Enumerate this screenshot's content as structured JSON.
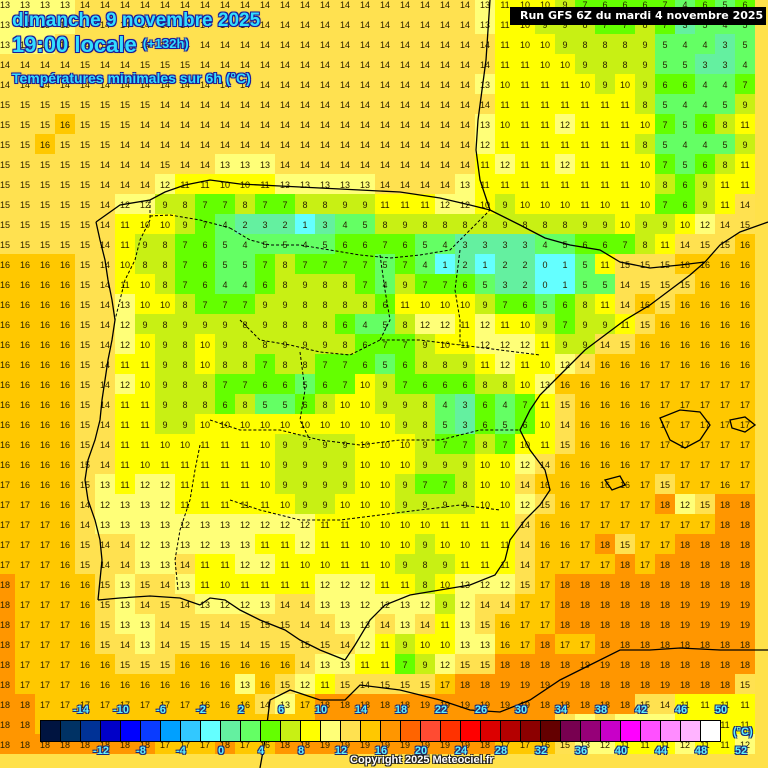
{
  "header": {
    "date": "dimanche 9 novembre 2025",
    "time": "19:00 locale",
    "offset": "(+132h)",
    "parameter": "Températures minimales sur 6h (°C)",
    "run": "Run GFS 6Z du mardi 4 novembre 2025"
  },
  "footer": {
    "copyright": "Copyright 2025 Meteociel.fr",
    "unit": "(°C)"
  },
  "legend": {
    "top_labels": [
      "-14",
      "-10",
      "-6",
      "-2",
      "2",
      "6",
      "10",
      "14",
      "18",
      "22",
      "26",
      "30",
      "34",
      "38",
      "42",
      "46",
      "50"
    ],
    "bottom_labels": [
      "-12",
      "-8",
      "-4",
      "0",
      "4",
      "8",
      "12",
      "16",
      "20",
      "24",
      "28",
      "32",
      "36",
      "40",
      "44",
      "48",
      "52"
    ],
    "colors": [
      "#001440",
      "#003264",
      "#003296",
      "#0000c8",
      "#0000ff",
      "#0a3cff",
      "#00a0ff",
      "#32c8ff",
      "#64ffff",
      "#64f0a0",
      "#64ff64",
      "#64ff00",
      "#c8f014",
      "#ffff00",
      "#ffff78",
      "#ffe150",
      "#ffc800",
      "#ff9600",
      "#ff6400",
      "#ff4b32",
      "#ff3200",
      "#ff0000",
      "#dc0000",
      "#b40000",
      "#8c0000",
      "#640000",
      "#780050",
      "#960078",
      "#c800c8",
      "#ff00ff",
      "#ff50ff",
      "#ff8cff",
      "#ffb4ff",
      "#ffffff"
    ]
  },
  "chart_data": {
    "type": "heatmap",
    "title": "Températures minimales sur 6h (°C)",
    "subtitle": "dimanche 9 novembre 2025 19:00 locale (+132h) — Run GFS 6Z du mardi 4 novembre 2025",
    "region": "Iberian Peninsula",
    "unit": "°C",
    "grid_spacing_px": 20,
    "rows": [
      "13 13 13 13 14 14 14 14 14 14 14 14 14 14 14 14 14 14 14 14 14 14 14 14 13 11 10 10 9 7 6 6 6 7 4 6 5 6",
      "13 13 13 13 14 14 14 14 14 14 14 14 14 14 14 14 14 14 14 14 14 14 14 14 13 11 10 9 9 8 7 7 8 7 3 5 4 5",
      "13 13 13 14 14 14 14 14 14 14 14 14 14 14 14 14 14 14 14 14 14 14 14 14 14 11 10 10 9 8 8 8 9 5 4 4 3 5",
      "14 14 14 14 15 14 14 15 15 15 14 14 14 14 14 14 14 14 14 14 14 14 14 14 14 11 11 10 10 9 8 8 9 5 5 3 3 4",
      "14 14 14 14 14 14 14 14 14 14 14 14 14 14 14 14 14 14 14 14 14 14 14 14 13 10 11 11 11 10 9 10 9 6 6 4 4 7",
      "15 15 15 15 15 15 15 15 14 14 14 14 14 14 14 14 14 14 14 14 14 14 14 14 14 11 11 11 11 11 11 11 8 5 4 4 5 9",
      "15 15 15 16 15 15 15 14 14 14 14 14 14 14 14 14 14 14 14 14 14 14 14 14 13 10 11 11 12 11 11 11 10 7 5 6 8 11",
      "15 15 16 15 15 15 14 14 14 14 14 14 14 14 14 14 14 14 14 14 14 14 14 14 12 11 11 11 11 11 11 11 8 5 4 4 5 9",
      "15 15 15 15 15 14 14 14 15 14 14 13 13 13 14 14 14 14 14 14 14 14 14 14 11 12 11 11 12 11 11 11 10 7 5 6 8 11",
      "15 15 15 15 15 14 14 14 12 11 11 10 10 11 13 13 13 13 13 14 14 14 14 13 11 11 11 11 11 11 11 11 10 8 6 9 11 11",
      "15 15 15 15 15 14 12 12 9 8 7 7 8 7 7 8 8 9 9 11 11 11 12 12 10 9 10 10 10 11 10 11 10 7 6 9 11 14",
      "15 15 15 15 15 14 11 10 10 9 7 4 2 3 2 1 3 4 5 8 9 8 8 8 8 9 8 8 8 9 9 10 9 9 10 12 14 15",
      "15 15 15 15 15 14 11 9 8 7 6 5 4 5 5 4 5 6 6 7 6 5 4 3 3 3 3 4 5 6 6 7 8 11 14 15 15 16",
      "16 16 16 16 15 14 10 8 8 7 6 5 5 7 8 7 7 7 7 5 7 4 1 2 1 2 2 0 1 5 11 15 15 15 16 16 16 16",
      "16 16 16 16 15 14 11 10 8 7 6 4 4 6 8 9 8 8 7 4 9 7 7 6 5 3 2 0 1 5 5 14 15 15 15 16 16 16",
      "16 16 16 16 15 14 13 10 10 8 7 7 7 9 9 8 8 8 8 6 11 10 10 10 9 7 6 5 6 8 11 14 16 15 16 16 16 16",
      "16 16 16 16 15 14 12 9 8 9 9 9 8 9 8 8 8 6 4 5 8 12 12 11 12 11 10 9 7 9 9 11 15 16 16 16 16 16",
      "16 16 16 16 15 14 12 10 9 8 10 9 8 8 9 9 9 8 6 7 7 9 10 11 12 12 12 11 9 9 14 15 16 16 16 16 16 16",
      "16 16 16 16 15 14 11 11 9 8 10 8 8 7 8 8 7 7 6 5 6 8 8 9 11 12 11 10 12 14 16 16 16 17 16 16 16 16",
      "16 16 16 16 15 14 12 10 9 8 8 7 7 6 6 5 6 7 10 9 7 6 6 6 8 8 10 13 16 16 16 16 17 17 17 17 17 17",
      "16 16 16 16 15 14 11 11 9 8 8 6 8 5 5 6 8 10 10 9 9 8 4 3 6 4 7 11 15 16 16 16 16 17 17 17 17 17",
      "16 16 16 16 15 14 11 11 9 9 10 10 10 10 10 10 10 10 10 10 9 8 5 3 6 5 6 10 14 16 16 16 16 17 17 17 17 17",
      "16 16 16 16 15 14 11 11 10 10 11 11 11 10 9 9 9 9 10 10 10 9 7 7 8 7 10 11 15 16 16 16 17 17 17 17 17 17",
      "16 16 16 16 15 14 11 10 11 11 11 11 11 10 9 9 9 9 10 10 10 9 9 9 10 10 12 14 16 16 16 16 17 17 17 17 17 17",
      "17 16 16 16 15 13 11 12 12 11 11 11 11 10 9 9 9 9 10 10 9 7 7 8 10 10 14 16 16 16 16 16 17 15 17 17 16 17",
      "17 17 16 16 14 12 13 13 12 11 11 11 11 11 10 9 9 10 10 10 9 9 9 9 10 10 12 15 16 17 17 17 17 18 12 15 18 18",
      "17 17 17 16 14 13 13 13 13 12 13 13 12 12 12 12 11 11 10 10 10 10 11 11 11 11 14 16 16 17 17 17 17 17 17 17 18 18",
      "17 17 17 16 15 14 14 12 13 13 12 13 13 11 11 12 11 11 10 10 10 9 10 10 11 11 14 16 16 17 18 15 17 17 18 18 18 18",
      "17 17 17 16 15 14 14 13 13 14 11 11 12 12 11 10 10 11 11 10 9 8 9 11 11 11 14 17 17 17 17 18 17 18 18 18 18 18",
      "18 17 17 16 16 15 13 15 14 13 11 10 11 11 11 11 12 12 12 11 11 8 10 13 12 12 15 17 18 18 18 18 18 18 18 18 18 18",
      "18 17 17 17 16 15 13 14 15 14 13 12 12 13 14 14 13 13 12 12 13 12 9 12 14 14 17 17 18 18 18 18 18 18 19 19 19 19",
      "18 17 17 17 16 15 13 13 14 15 15 14 15 15 15 14 14 13 13 14 13 14 11 13 15 16 17 17 18 18 18 18 18 18 19 19 19 19",
      "18 17 17 17 16 15 14 13 14 15 15 15 14 15 15 15 15 14 12 11 9 10 10 13 13 16 17 18 17 17 18 18 18 18 18 18 18 18",
      "18 17 17 17 16 16 15 15 15 16 16 16 16 16 16 14 13 13 11 11 7 9 12 15 15 18 18 18 18 19 19 18 18 18 18 18 18 18",
      "18 17 17 17 16 16 16 16 16 16 16 16 13 16 15 12 11 15 14 15 15 15 17 18 18 19 19 19 19 18 18 18 18 19 18 18 18 15",
      "18 18 17 17 17 17 17 17 17 17 16 16 16 14 13 17 18 18 18 18 18 19 19 19 19 19 19 18 18 18 18 18 15 14 11 11 11 11",
      "18 18 17 17 17 17 17 17 17 17 17 17 17 17 17 17 18 19 19 19 19 19 19 19 18 18 18 18 15 13 14 13 12 12 11 11 11 11",
      "18 18 18 18 18 18 18 18 17 17 17 18 17 16 18 18 19 19 19 19 19 19 19 19 18 17 17 16 15 13 12 11 11 11 12 11 11 12"
    ]
  }
}
